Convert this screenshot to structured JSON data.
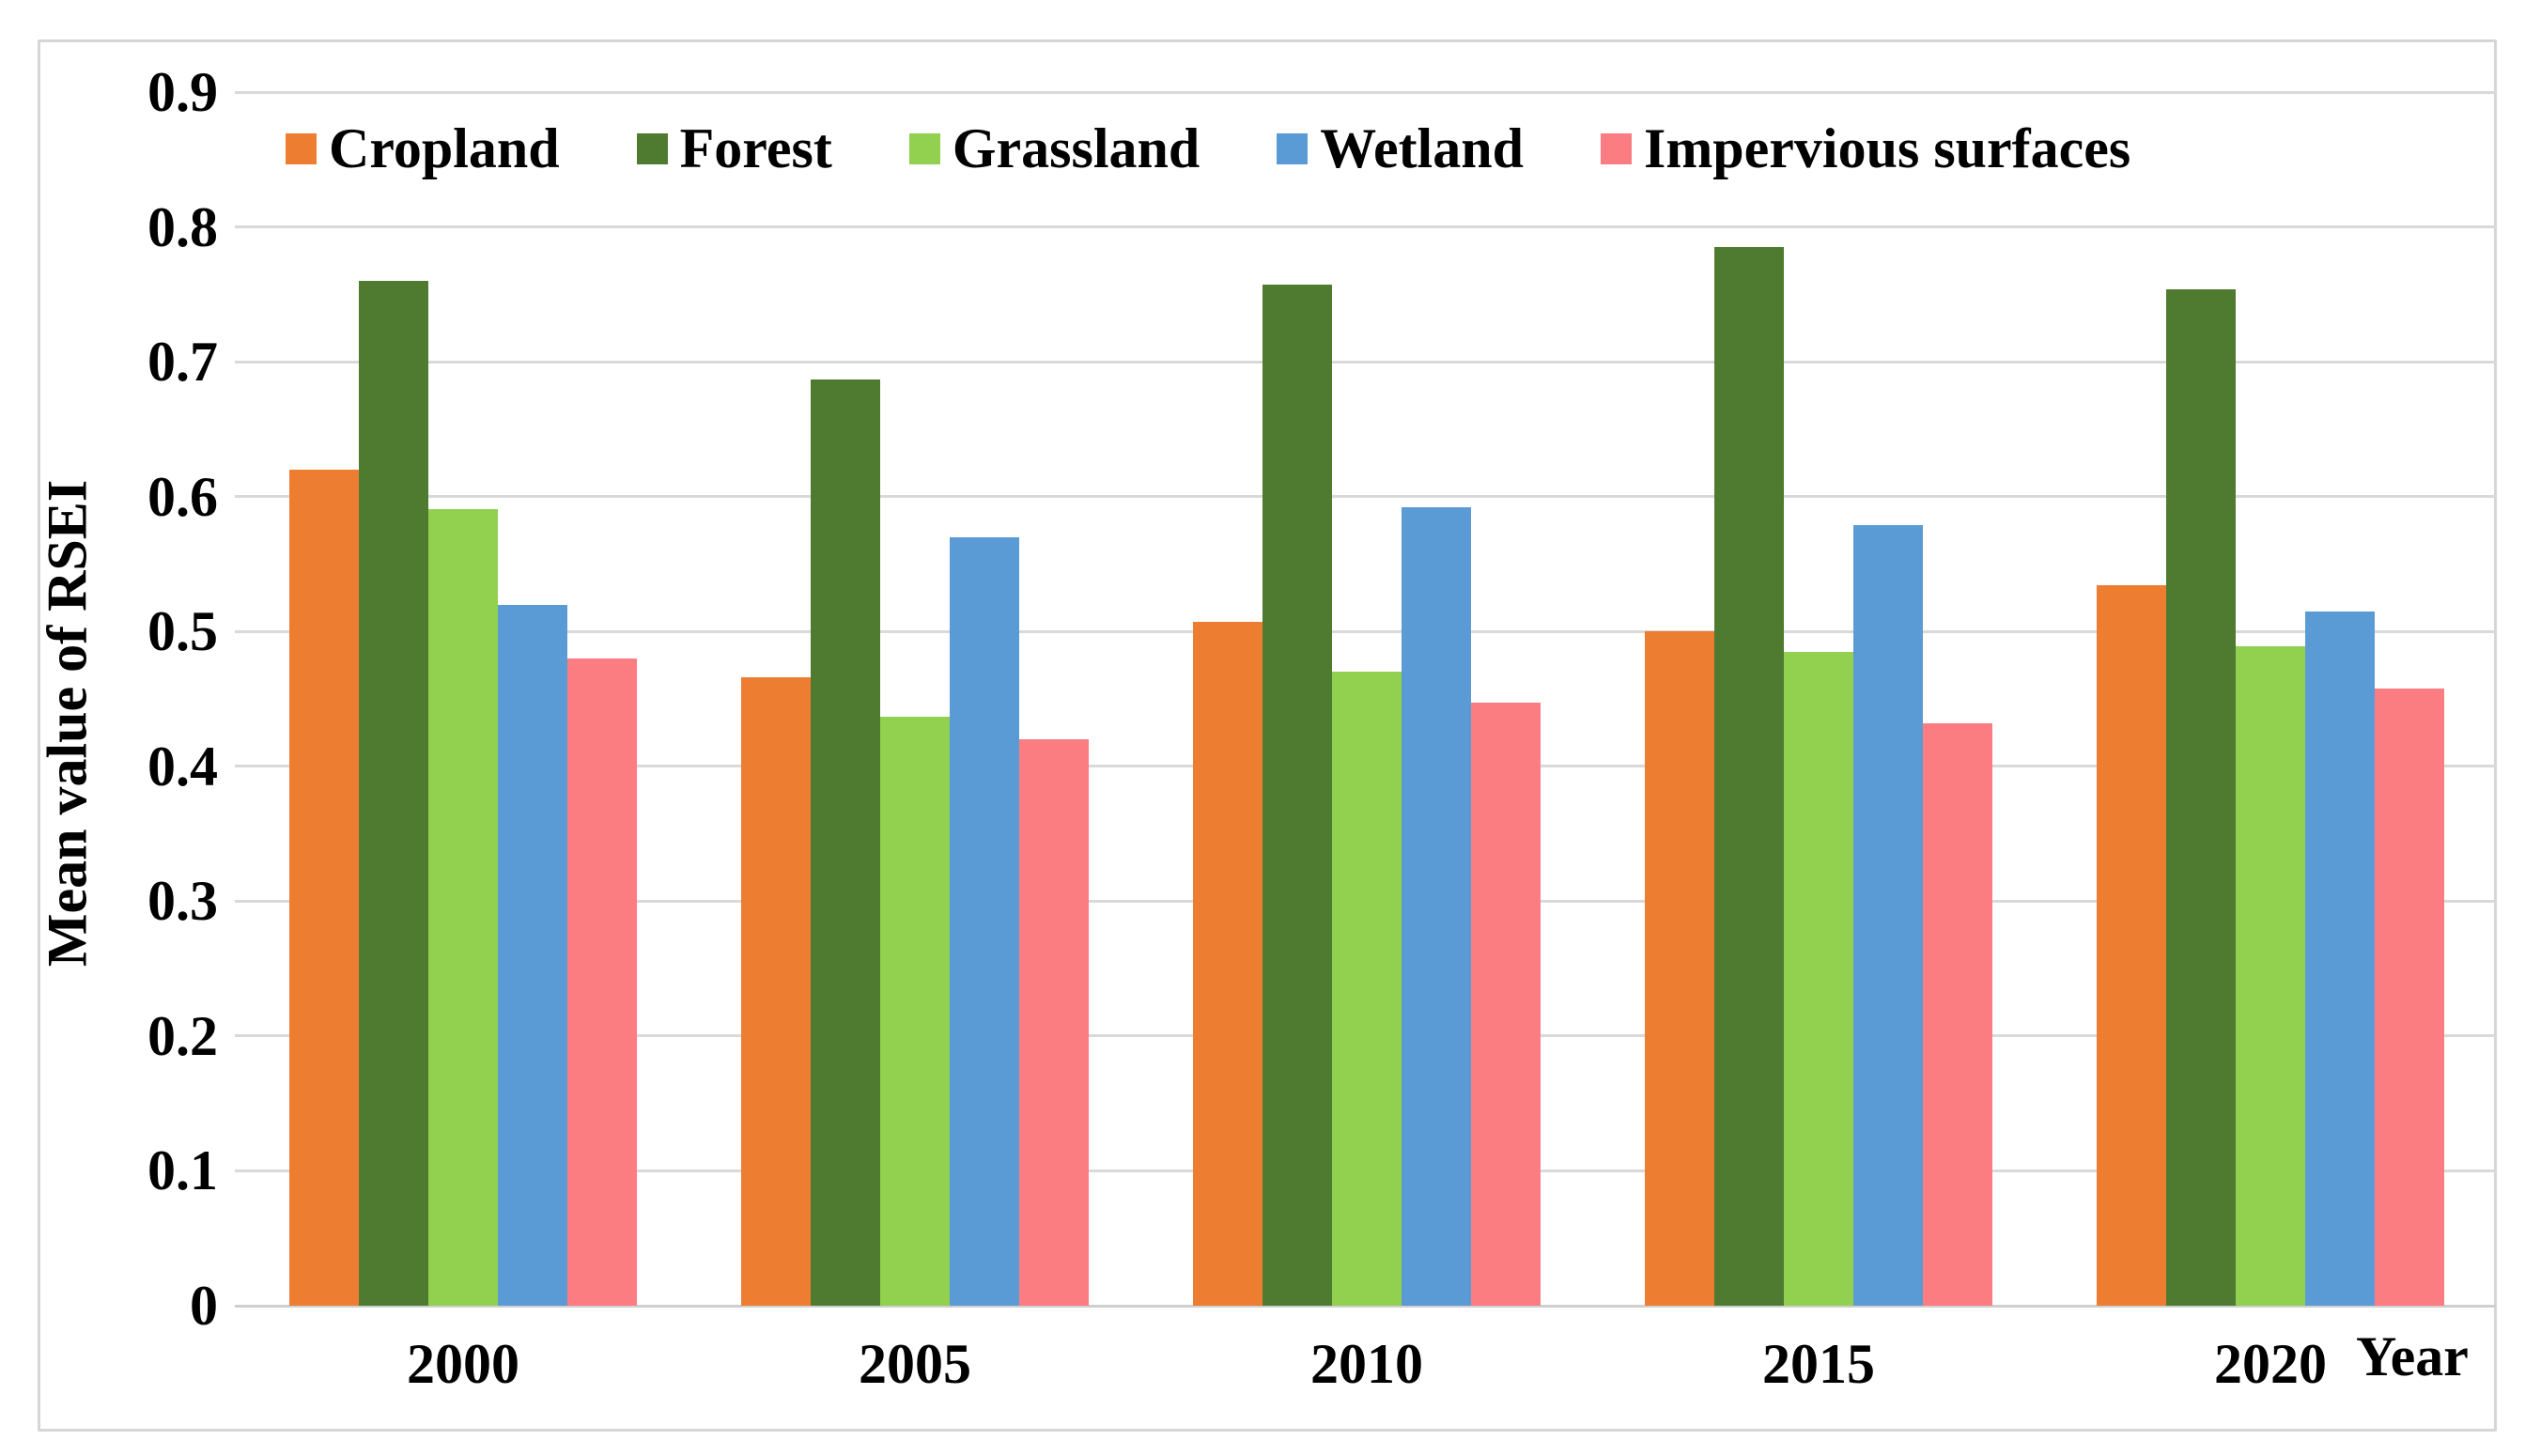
{
  "chart_data": {
    "type": "bar",
    "title": "",
    "categories": [
      "2000",
      "2005",
      "2010",
      "2015",
      "2020"
    ],
    "series": [
      {
        "name": "Cropland",
        "color": "#ED7D31",
        "values": [
          0.62,
          0.466,
          0.507,
          0.5,
          0.534
        ]
      },
      {
        "name": "Forest",
        "color": "#4F7B31",
        "values": [
          0.76,
          0.687,
          0.757,
          0.785,
          0.754
        ]
      },
      {
        "name": "Grassland",
        "color": "#92D050",
        "values": [
          0.591,
          0.437,
          0.47,
          0.485,
          0.489
        ]
      },
      {
        "name": "Wetland",
        "color": "#5B9BD5",
        "values": [
          0.52,
          0.57,
          0.592,
          0.579,
          0.515
        ]
      },
      {
        "name": "Impervious surfaces",
        "color": "#FB7D81",
        "values": [
          0.48,
          0.42,
          0.447,
          0.432,
          0.458
        ]
      }
    ],
    "xlabel": "Year",
    "ylabel": "Mean value of RSEI",
    "ylim": [
      0,
      0.9
    ],
    "ytick_step": 0.1,
    "ytick_labels": [
      "0",
      "0.1",
      "0.2",
      "0.3",
      "0.4",
      "0.5",
      "0.6",
      "0.7",
      "0.8",
      "0.9"
    ],
    "grid": true,
    "legend_position": "top",
    "grid_color": "#D9D9D9",
    "axis_line_color": "#CFCFCF",
    "border_color": "#D6D6D6",
    "background_color": "#FFFFFF",
    "text_color": "#000000"
  }
}
